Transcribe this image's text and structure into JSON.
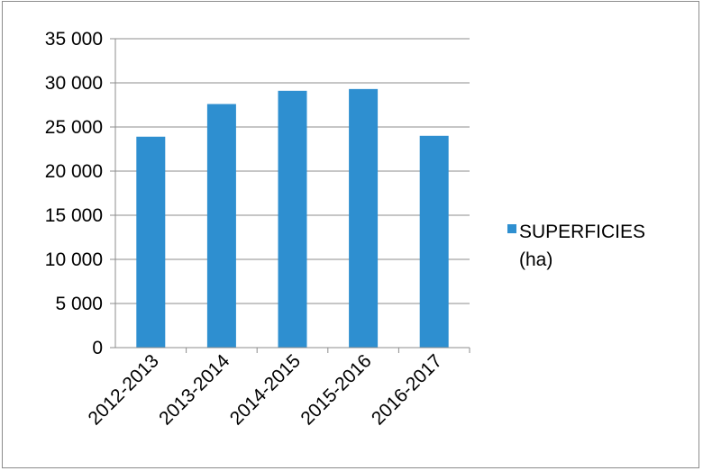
{
  "chart_data": {
    "type": "bar",
    "categories": [
      "2012-2013",
      "2013-2014",
      "2014-2015",
      "2015-2016",
      "2016-2017"
    ],
    "series": [
      {
        "name": "SUPERFICIES (ha)",
        "values": [
          23900,
          27600,
          29100,
          29300,
          24000
        ]
      }
    ],
    "y_ticks": [
      "0",
      "5 000",
      "10 000",
      "15 000",
      "20 000",
      "25 000",
      "30 000",
      "35 000"
    ],
    "ylim": [
      0,
      35000
    ],
    "grid": true,
    "legend": {
      "position": "right",
      "lines": [
        "SUPERFICIES",
        "(ha)"
      ]
    },
    "colors": {
      "bar": "#2e8fd0",
      "grid": "#8c8c8c",
      "axis": "#8c8c8c"
    }
  }
}
